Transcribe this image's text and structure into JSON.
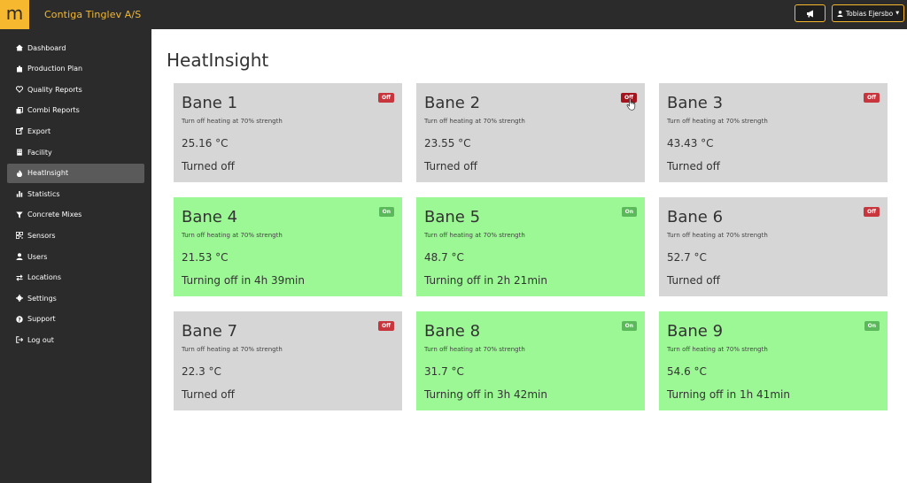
{
  "header": {
    "logo_letter": "m",
    "company": "Contiga Tinglev A/S",
    "user_name": "Tobias Ejersbo",
    "colors": {
      "bar": "#2b2b2b",
      "accent": "#f5b82e"
    }
  },
  "sidebar": {
    "items": [
      {
        "label": "Dashboard",
        "icon": "home-icon"
      },
      {
        "label": "Production Plan",
        "icon": "puzzle-icon"
      },
      {
        "label": "Quality Reports",
        "icon": "heart-icon"
      },
      {
        "label": "Combi Reports",
        "icon": "copy-icon"
      },
      {
        "label": "Export",
        "icon": "export-icon"
      },
      {
        "label": "Facility",
        "icon": "building-icon"
      },
      {
        "label": "HeatInsight",
        "icon": "fire-icon",
        "active": true
      },
      {
        "label": "Statistics",
        "icon": "bar-chart-icon"
      },
      {
        "label": "Concrete Mixes",
        "icon": "filter-icon"
      },
      {
        "label": "Sensors",
        "icon": "qrcode-icon"
      },
      {
        "label": "Users",
        "icon": "user-icon"
      },
      {
        "label": "Locations",
        "icon": "exchange-icon"
      },
      {
        "label": "Settings",
        "icon": "gear-icon"
      },
      {
        "label": "Support",
        "icon": "question-icon"
      },
      {
        "label": "Log out",
        "icon": "sign-out-icon"
      }
    ]
  },
  "main": {
    "title": "HeatInsight",
    "cards": [
      {
        "title": "Bane 1",
        "desc": "Turn off heating at 70% strength",
        "temp": "25.16 °C",
        "status": "Turned off",
        "badge": "Off",
        "on": false
      },
      {
        "title": "Bane 2",
        "desc": "Turn off heating at 70% strength",
        "temp": "23.55 °C",
        "status": "Turned off",
        "badge": "Off",
        "on": false
      },
      {
        "title": "Bane 3",
        "desc": "Turn off heating at 70% strength",
        "temp": "43.43 °C",
        "status": "Turned off",
        "badge": "Off",
        "on": false
      },
      {
        "title": "Bane 4",
        "desc": "Turn off heating at 70% strength",
        "temp": "21.53 °C",
        "status": "Turning off in 4h 39min",
        "badge": "On",
        "on": true
      },
      {
        "title": "Bane 5",
        "desc": "Turn off heating at 70% strength",
        "temp": "48.7 °C",
        "status": "Turning off in 2h 21min",
        "badge": "On",
        "on": true
      },
      {
        "title": "Bane 6",
        "desc": "Turn off heating at 70% strength",
        "temp": "52.7 °C",
        "status": "Turned off",
        "badge": "Off",
        "on": false
      },
      {
        "title": "Bane 7",
        "desc": "Turn off heating at 70% strength",
        "temp": "22.3 °C",
        "status": "Turned off",
        "badge": "Off",
        "on": false
      },
      {
        "title": "Bane 8",
        "desc": "Turn off heating at 70% strength",
        "temp": "31.7 °C",
        "status": "Turning off in 3h 42min",
        "badge": "On",
        "on": true
      },
      {
        "title": "Bane 9",
        "desc": "Turn off heating at 70% strength",
        "temp": "54.6 °C",
        "status": "Turning off in 1h 41min",
        "badge": "On",
        "on": true
      }
    ],
    "colors": {
      "card_off": "#d6d6d6",
      "card_on": "#9bf894",
      "badge_off": "#c9353d",
      "badge_on": "#5bb85b"
    }
  }
}
